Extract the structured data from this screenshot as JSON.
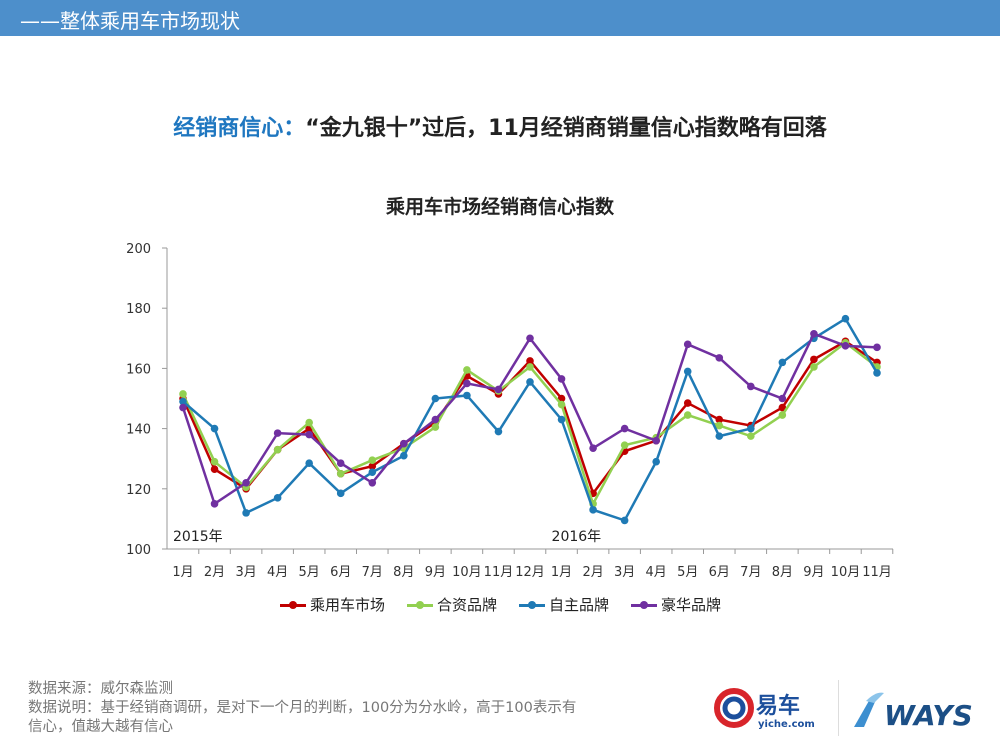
{
  "header": {
    "title": "——整体乘用车市场现状"
  },
  "headline": {
    "highlight": "经销商信心：",
    "text": "“金九银十”过后，11月经销商销量信心指数略有回落"
  },
  "chart_data": {
    "type": "line",
    "title": "乘用车市场经销商信心指数",
    "categories": [
      "1月",
      "2月",
      "3月",
      "4月",
      "5月",
      "6月",
      "7月",
      "8月",
      "9月",
      "10月",
      "11月",
      "12月",
      "1月",
      "2月",
      "3月",
      "4月",
      "5月",
      "6月",
      "7月",
      "8月",
      "9月",
      "10月",
      "11月"
    ],
    "year_labels": [
      {
        "index": 0,
        "label": "2015年"
      },
      {
        "index": 12,
        "label": "2016年"
      }
    ],
    "ylim": [
      100,
      200
    ],
    "yticks": [
      100,
      120,
      140,
      160,
      180,
      200
    ],
    "grid": false,
    "legend": "bottom",
    "series": [
      {
        "name": "乘用车市场",
        "color": "#c00000",
        "values": [
          150,
          126.5,
          120,
          133,
          140,
          125,
          127.5,
          135,
          142,
          157.5,
          151.5,
          162.5,
          150,
          118.5,
          132.5,
          136,
          148.5,
          143,
          141,
          147,
          163,
          169,
          162
        ]
      },
      {
        "name": "合资品牌",
        "color": "#92d050",
        "values": [
          151.5,
          129,
          120.5,
          133,
          142,
          125,
          129.5,
          133.5,
          140.5,
          159.5,
          152.5,
          160.5,
          148,
          115,
          134.5,
          137,
          144.5,
          141,
          137.5,
          144.5,
          160.5,
          168.5,
          160.5
        ]
      },
      {
        "name": "自主品牌",
        "color": "#1f7ab5",
        "values": [
          149,
          140,
          112,
          117,
          128.5,
          118.5,
          125.5,
          131,
          150,
          151,
          139,
          155.5,
          143,
          113,
          109.5,
          129,
          159,
          137.5,
          140,
          162,
          170,
          176.5,
          158.5
        ]
      },
      {
        "name": "豪华品牌",
        "color": "#7030a0",
        "values": [
          147,
          115,
          122,
          138.5,
          138,
          128.5,
          122,
          135,
          143,
          155,
          153,
          170,
          156.5,
          133.5,
          140,
          136,
          168,
          163.5,
          154,
          150,
          171.5,
          167.5,
          167
        ]
      }
    ]
  },
  "footer": {
    "source": "数据来源：威尔森监测",
    "note1": "数据说明：基于经销商调研，是对下一个月的判断，100分为分水岭，高于100表示有",
    "note2": "信心，值越大越有信心"
  },
  "logos": {
    "yiche": "易车 yiche.com",
    "ways": "WAYS"
  }
}
